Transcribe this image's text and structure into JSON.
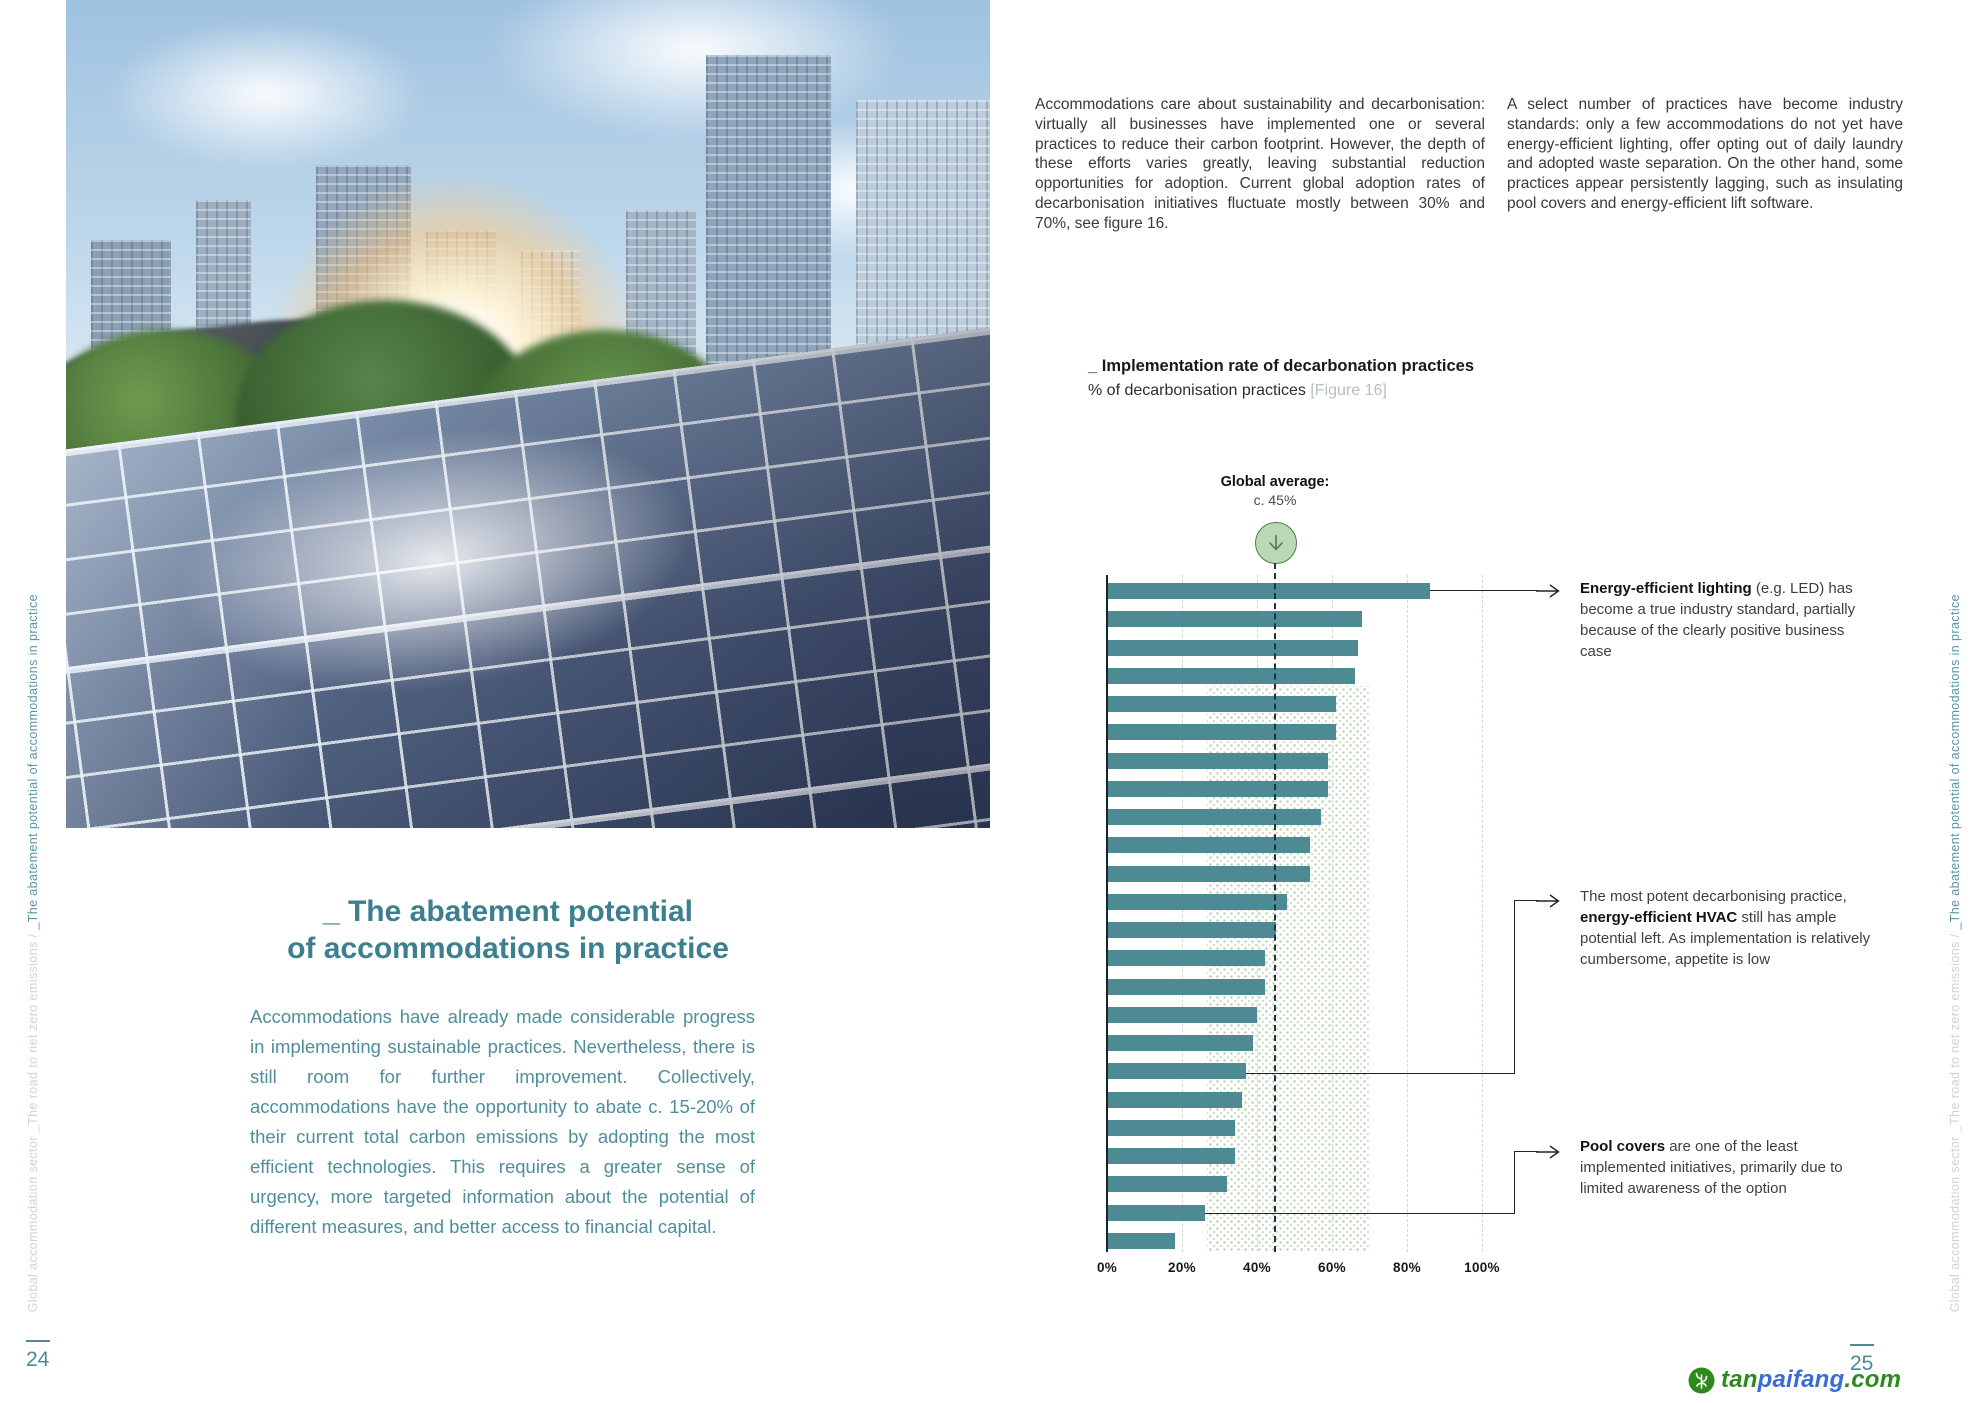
{
  "left_page": {
    "title_line1": "_ The abatement potential",
    "title_line2": "of accommodations in practice",
    "paragraph": "Accommodations have already made considerable progress in implementing sustainable practices. Nevertheless, there is still room for further improvement. Collectively, accommodations have the opportunity to abate c. 15-20% of their current total carbon emissions by adopting the most efficient technologies. This requires a greater sense of urgency, more targeted information about the potential of different measures, and better access to financial capital.",
    "page_number": "24"
  },
  "right_page": {
    "intro_col1": "Accommodations care about sustainability and decarbonisation: virtually all businesses have implemented one or several practices to reduce their carbon footprint. However, the depth of these efforts varies greatly, leaving substantial reduction opportunities for adoption. Current global adoption rates of decarbonisation initiatives fluctuate mostly between 30% and 70%, see figure 16.",
    "intro_col2": "A select number of practices have become industry standards: only a few accommodations do not yet have energy-efficient lighting, offer opting out of daily laundry and adopted waste separation. On the other hand, some practices appear persistently lagging, such as insulating pool covers and energy-efficient lift software.",
    "page_number": "25"
  },
  "sidebar": {
    "grey_text": "Global accommodation sector _The road to net zero emissions  /  ",
    "teal_text": "_The abatement potential of accommodations in practice"
  },
  "watermark": {
    "tan": "tan",
    "paifang": "paifang",
    "com": ".com"
  },
  "chart_data": {
    "type": "bar",
    "orientation": "horizontal",
    "title": "_ Implementation rate of decarbonation practices",
    "subtitle": "% of decarbonisation practices",
    "figure_label": "[Figure 16]",
    "global_average_label": "Global average:",
    "global_average_value": "c. 45%",
    "global_average": 45,
    "x_ticks": [
      "0%",
      "20%",
      "40%",
      "60%",
      "80%",
      "100%"
    ],
    "xlim": [
      0,
      100
    ],
    "values": [
      86,
      68,
      67,
      66,
      61,
      61,
      59,
      59,
      57,
      54,
      54,
      48,
      45,
      42,
      42,
      40,
      39,
      37,
      36,
      34,
      34,
      32,
      26,
      18
    ],
    "highlight_band": [
      27,
      69
    ],
    "bar_color": "#4d8a93",
    "annotations": [
      {
        "pre": "",
        "bold": "Energy-efficient lighting",
        "post": " (e.g. LED) has become a true industry standard, partially because of the clearly positive business case"
      },
      {
        "pre": "The most potent decarbonising practice, ",
        "bold": "energy-efficient HVAC",
        "post": " still has ample potential left. As implementation is relatively cumbersome, appetite is low"
      },
      {
        "pre": "",
        "bold": "Pool covers",
        "post": " are one of the least implemented initiatives, primarily due to limited awareness of the option"
      }
    ]
  }
}
